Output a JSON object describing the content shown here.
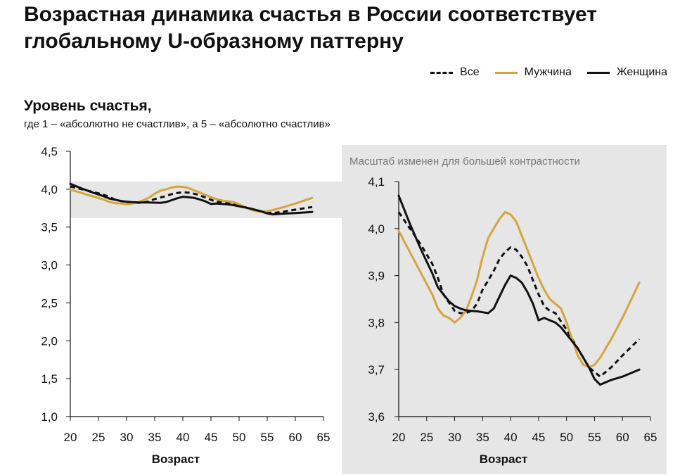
{
  "title": "Возрастная динамика счастья в России соответствует глобальному U-образному паттерну",
  "subtitle": "Уровень счастья,",
  "note": "где 1 – «абсолютно не счастлив», а 5 –  «абсолютно счастлив»",
  "legend": [
    {
      "name": "Все",
      "color": "#111111",
      "style": "dashed"
    },
    {
      "name": "Мужчина",
      "color": "#D4A53E",
      "style": "solid"
    },
    {
      "name": "Женщина",
      "color": "#111111",
      "style": "solid"
    }
  ],
  "zoom_note": "Масштаб изменен для большей контрастности",
  "chart_data": [
    {
      "type": "line",
      "xlabel": "Возраст",
      "ylabel": "",
      "xlim": [
        20,
        65
      ],
      "ylim": [
        1.0,
        4.5
      ],
      "x_ticks": [
        20,
        25,
        30,
        35,
        40,
        45,
        50,
        55,
        60,
        65
      ],
      "x_tick_labels": [
        "20",
        "25",
        "30",
        "35",
        "40",
        "45",
        "50",
        "55",
        "60",
        "65"
      ],
      "y_ticks": [
        1.0,
        1.5,
        2.0,
        2.5,
        3.0,
        3.5,
        4.0,
        4.5
      ],
      "y_tick_labels": [
        "1,0",
        "1,5",
        "2,0",
        "2,5",
        "3,0",
        "3,5",
        "4,0",
        "4,5"
      ],
      "highlight_band": [
        3.62,
        4.1
      ],
      "series_ref": [
        "Все",
        "Мужчина",
        "Женщина"
      ]
    },
    {
      "type": "line",
      "xlabel": "Возраст",
      "ylabel": "",
      "xlim": [
        20,
        65
      ],
      "ylim": [
        3.6,
        4.1
      ],
      "x_ticks": [
        20,
        25,
        30,
        35,
        40,
        45,
        50,
        55,
        60,
        65
      ],
      "x_tick_labels": [
        "20",
        "25",
        "30",
        "35",
        "40",
        "45",
        "50",
        "55",
        "60",
        "65"
      ],
      "y_ticks": [
        3.6,
        3.7,
        3.8,
        3.9,
        4.0,
        4.1
      ],
      "y_tick_labels": [
        "3,6",
        "3,7",
        "3,8",
        "3,9",
        "4,0",
        "4,1"
      ],
      "series_ref": [
        "Все",
        "Мужчина",
        "Женщина"
      ]
    }
  ],
  "series": [
    {
      "name": "Все",
      "color": "#111111",
      "dash": "7,5",
      "x": [
        20,
        22,
        24,
        26,
        27,
        28,
        30,
        31,
        32,
        33,
        34,
        35,
        36,
        37,
        38,
        39,
        40,
        41,
        42,
        43,
        44,
        45,
        46,
        47,
        48,
        50,
        52,
        54,
        56,
        58,
        60,
        63
      ],
      "y": [
        4.035,
        4.0,
        3.965,
        3.925,
        3.895,
        3.86,
        3.825,
        3.82,
        3.82,
        3.825,
        3.84,
        3.87,
        3.89,
        3.91,
        3.935,
        3.95,
        3.96,
        3.955,
        3.94,
        3.92,
        3.89,
        3.86,
        3.835,
        3.825,
        3.82,
        3.785,
        3.745,
        3.705,
        3.685,
        3.705,
        3.73,
        3.765
      ]
    },
    {
      "name": "Мужчина",
      "color": "#D4A53E",
      "dash": "",
      "x": [
        20,
        22,
        24,
        26,
        27,
        28,
        29,
        30,
        31,
        32,
        33,
        34,
        35,
        36,
        37,
        38,
        39,
        40,
        41,
        42,
        43,
        44,
        45,
        46,
        47,
        48,
        49,
        50,
        51,
        52,
        53,
        54,
        55,
        56,
        58,
        60,
        63
      ],
      "y": [
        3.995,
        3.95,
        3.905,
        3.86,
        3.83,
        3.815,
        3.81,
        3.8,
        3.81,
        3.825,
        3.855,
        3.89,
        3.94,
        3.98,
        4.0,
        4.02,
        4.035,
        4.03,
        4.015,
        3.985,
        3.955,
        3.925,
        3.895,
        3.87,
        3.85,
        3.84,
        3.83,
        3.8,
        3.765,
        3.73,
        3.71,
        3.705,
        3.71,
        3.725,
        3.765,
        3.81,
        3.885
      ]
    },
    {
      "name": "Женщина",
      "color": "#111111",
      "dash": "",
      "x": [
        20,
        22,
        24,
        26,
        27,
        28,
        29,
        30,
        31,
        32,
        33,
        34,
        35,
        36,
        37,
        38,
        39,
        40,
        41,
        42,
        43,
        44,
        45,
        46,
        47,
        48,
        49,
        50,
        52,
        54,
        55,
        56,
        58,
        60,
        63
      ],
      "y": [
        4.07,
        4.01,
        3.955,
        3.905,
        3.875,
        3.86,
        3.845,
        3.835,
        3.83,
        3.826,
        3.825,
        3.824,
        3.822,
        3.82,
        3.83,
        3.855,
        3.88,
        3.9,
        3.895,
        3.885,
        3.865,
        3.84,
        3.805,
        3.81,
        3.805,
        3.8,
        3.79,
        3.775,
        3.745,
        3.705,
        3.68,
        3.668,
        3.678,
        3.685,
        3.7
      ]
    }
  ]
}
